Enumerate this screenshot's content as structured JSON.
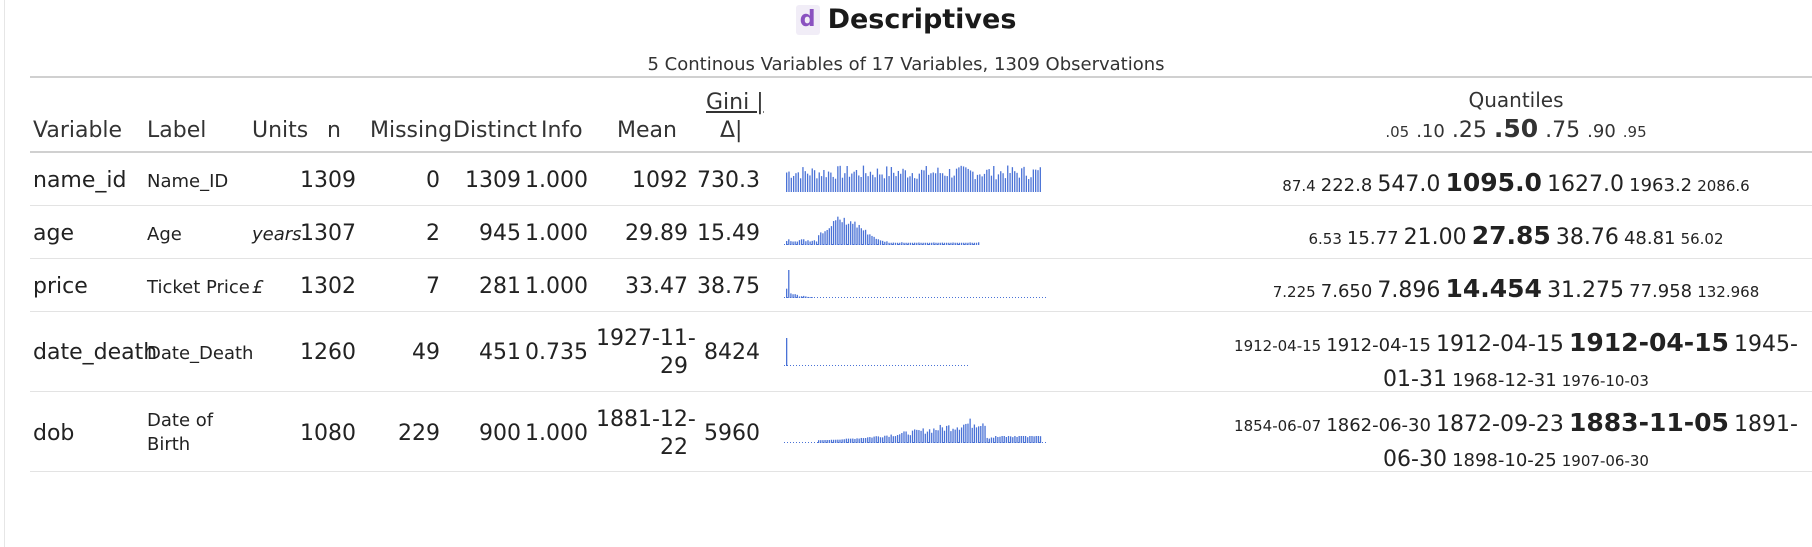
{
  "title": "Descriptives",
  "badge": "d",
  "subtitle": "5 Continous Variables of 17 Variables, 1309 Observations",
  "headers": {
    "variable": "Variable",
    "label": "Label",
    "units": "Units",
    "n": "n",
    "missing": "Missing",
    "distinct": "Distinct",
    "info": "Info",
    "mean": "Mean",
    "gini": "Gini |",
    "delta": "Δ|",
    "quantiles": "Quantiles",
    "q05": ".05",
    "q10": ".10",
    "q25": ".25",
    "q50": ".50",
    "q75": ".75",
    "q90": ".90",
    "q95": ".95"
  },
  "rows": [
    {
      "variable": "name_id",
      "label": "Name_ID",
      "units": "",
      "n": "1309",
      "missing": "0",
      "distinct": "1309",
      "info": "1.000",
      "mean": "1092",
      "mean2": "",
      "gini": "730.3",
      "q": [
        "87.4",
        "222.8",
        "547.0",
        "1095.0",
        "1627.0",
        "1963.2",
        "2086.6"
      ]
    },
    {
      "variable": "age",
      "label": "Age",
      "units": "years",
      "n": "1307",
      "missing": "2",
      "distinct": "945",
      "info": "1.000",
      "mean": "29.89",
      "mean2": "",
      "gini": "15.49",
      "q": [
        "6.53",
        "15.77",
        "21.00",
        "27.85",
        "38.76",
        "48.81",
        "56.02"
      ]
    },
    {
      "variable": "price",
      "label": "Ticket Price",
      "units": "£",
      "n": "1302",
      "missing": "7",
      "distinct": "281",
      "info": "1.000",
      "mean": "33.47",
      "mean2": "",
      "gini": "38.75",
      "q": [
        "7.225",
        "7.650",
        "7.896",
        "14.454",
        "31.275",
        "77.958",
        "132.968"
      ]
    },
    {
      "variable": "date_death",
      "label": "Date_Death",
      "units": "",
      "n": "1260",
      "missing": "49",
      "distinct": "451",
      "info": "0.735",
      "mean": "1927-11-",
      "mean2": "29",
      "gini": "8424",
      "q": [
        "1912-04-15",
        "1912-04-15",
        "1912-04-15",
        "1912-04-15",
        "1945-01-31",
        "1968-12-31",
        "1976-10-03"
      ]
    },
    {
      "variable": "dob",
      "label": "Date of",
      "label2": "Birth",
      "units": "",
      "n": "1080",
      "missing": "229",
      "distinct": "900",
      "info": "1.000",
      "mean": "1881-12-",
      "mean2": "22",
      "gini": "5960",
      "q": [
        "1854-06-07",
        "1862-06-30",
        "1872-09-23",
        "1883-11-05",
        "1891-06-30",
        "1898-10-25",
        "1907-06-30"
      ]
    }
  ],
  "colors": {
    "spark": "#4a72d6",
    "badge_bg": "#f1edf7",
    "badge_fg": "#8a52c0"
  }
}
